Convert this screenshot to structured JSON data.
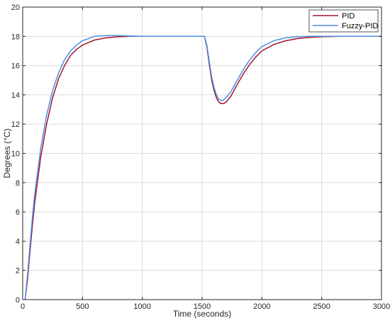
{
  "chart_data": {
    "type": "line",
    "xlabel": "Time (seconds)",
    "ylabel": "Degrees (°C)",
    "xlim": [
      0,
      3000
    ],
    "ylim": [
      0,
      20
    ],
    "xticks": [
      0,
      500,
      1000,
      1500,
      2000,
      2500,
      3000
    ],
    "yticks": [
      0,
      2,
      4,
      6,
      8,
      10,
      12,
      14,
      16,
      18,
      20
    ],
    "grid": true,
    "legend_position": "top-right",
    "series": [
      {
        "name": "PID",
        "color": "#a2142f",
        "x": [
          20,
          40,
          60,
          80,
          100,
          150,
          200,
          250,
          300,
          350,
          400,
          450,
          500,
          600,
          700,
          800,
          900,
          1000,
          1100,
          1200,
          1300,
          1400,
          1500,
          1520,
          1540,
          1560,
          1580,
          1600,
          1620,
          1640,
          1660,
          1680,
          1700,
          1720,
          1740,
          1760,
          1800,
          1850,
          1900,
          1950,
          2000,
          2100,
          2200,
          2300,
          2400,
          2500,
          2600,
          2700,
          2800,
          2900,
          3000
        ],
        "y": [
          0.0,
          1.3,
          3.2,
          5.0,
          6.6,
          9.7,
          12.0,
          13.8,
          15.1,
          16.0,
          16.7,
          17.1,
          17.4,
          17.75,
          17.9,
          17.97,
          18.0,
          18.0,
          18.0,
          18.0,
          18.0,
          18.0,
          18.0,
          18.0,
          17.3,
          16.1,
          15.0,
          14.3,
          13.8,
          13.5,
          13.4,
          13.4,
          13.5,
          13.7,
          13.9,
          14.2,
          14.8,
          15.5,
          16.1,
          16.6,
          17.0,
          17.45,
          17.7,
          17.85,
          17.93,
          17.97,
          17.99,
          18.0,
          18.0,
          18.0,
          18.0
        ]
      },
      {
        "name": "Fuzzy-PID",
        "color": "#4d8fe6",
        "x": [
          20,
          40,
          60,
          80,
          100,
          150,
          200,
          250,
          300,
          350,
          400,
          450,
          500,
          600,
          700,
          800,
          900,
          1000,
          1100,
          1200,
          1300,
          1400,
          1500,
          1520,
          1540,
          1560,
          1580,
          1600,
          1620,
          1640,
          1660,
          1680,
          1700,
          1720,
          1740,
          1760,
          1800,
          1850,
          1900,
          1950,
          2000,
          2100,
          2200,
          2300,
          2400,
          2500,
          2600,
          2700,
          2800,
          2900,
          3000
        ],
        "y": [
          0.0,
          1.6,
          3.6,
          5.5,
          7.2,
          10.3,
          12.6,
          14.3,
          15.5,
          16.4,
          17.0,
          17.4,
          17.7,
          18.0,
          18.05,
          18.05,
          18.02,
          18.0,
          18.0,
          18.0,
          18.0,
          18.0,
          18.0,
          18.0,
          17.4,
          16.3,
          15.2,
          14.5,
          14.0,
          13.7,
          13.6,
          13.65,
          13.8,
          14.0,
          14.2,
          14.5,
          15.1,
          15.8,
          16.4,
          16.9,
          17.3,
          17.7,
          17.9,
          17.97,
          18.0,
          18.0,
          18.0,
          18.0,
          18.0,
          18.0,
          18.0
        ]
      }
    ]
  }
}
